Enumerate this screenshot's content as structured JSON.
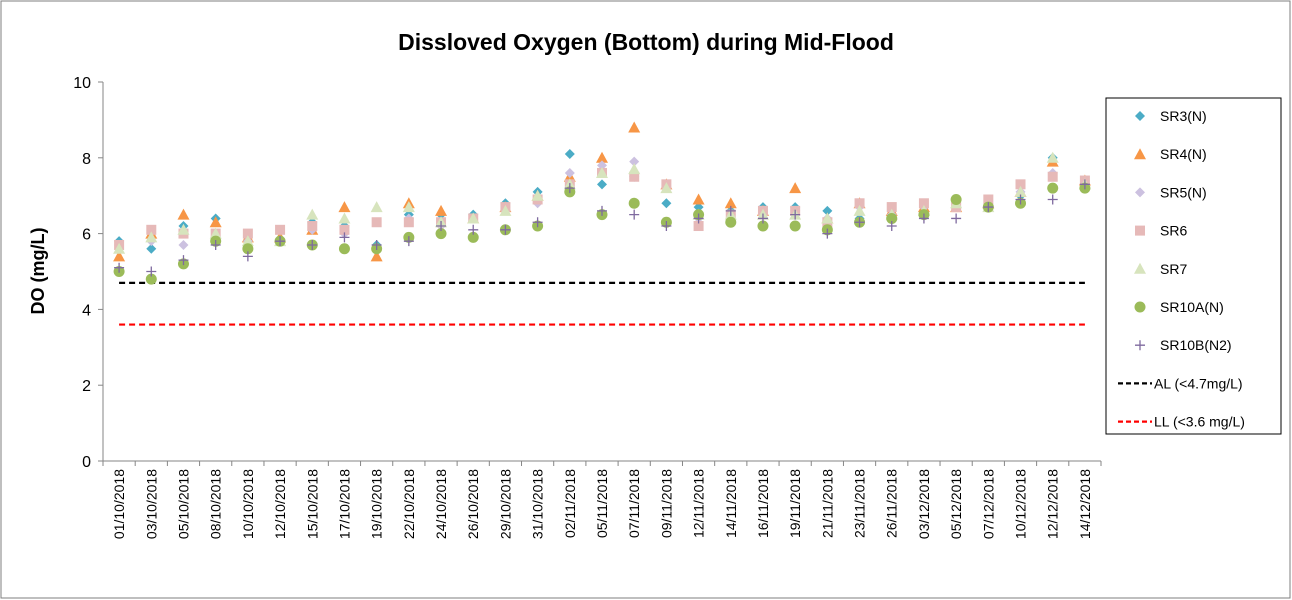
{
  "chart_data": {
    "type": "scatter",
    "title": "Dissloved Oxygen (Bottom) during Mid-Flood",
    "y_label": "DO (mg/L)",
    "categories": [
      "01/10/2018",
      "03/10/2018",
      "05/10/2018",
      "08/10/2018",
      "10/10/2018",
      "12/10/2018",
      "15/10/2018",
      "17/10/2018",
      "19/10/2018",
      "22/10/2018",
      "24/10/2018",
      "26/10/2018",
      "29/10/2018",
      "31/10/2018",
      "02/11/2018",
      "05/11/2018",
      "07/11/2018",
      "09/11/2018",
      "12/11/2018",
      "14/11/2018",
      "16/11/2018",
      "19/11/2018",
      "21/11/2018",
      "23/11/2018",
      "26/11/2018",
      "03/12/2018",
      "05/12/2018",
      "07/12/2018",
      "10/12/2018",
      "12/12/2018",
      "14/12/2018"
    ],
    "ylim": [
      0,
      10
    ],
    "yticks": [
      0,
      2,
      4,
      6,
      8,
      10
    ],
    "series": [
      {
        "name": "SR3(N)",
        "color": "#4bacc6",
        "marker": "diamond",
        "values": [
          5.8,
          5.6,
          6.2,
          6.4,
          5.7,
          5.8,
          6.3,
          6.2,
          5.7,
          6.5,
          6.5,
          6.5,
          6.8,
          7.1,
          8.1,
          7.3,
          7.5,
          6.8,
          6.7,
          6.6,
          6.7,
          6.7,
          6.6,
          6.4,
          6.5,
          6.5,
          6.8,
          6.7,
          7.0,
          8.0,
          7.3
        ]
      },
      {
        "name": "SR4(N)",
        "color": "#f79646",
        "marker": "triangle",
        "values": [
          5.4,
          6.0,
          6.5,
          6.3,
          5.9,
          5.9,
          6.1,
          6.7,
          5.4,
          6.8,
          6.6,
          6.4,
          6.7,
          7.0,
          7.5,
          8.0,
          8.8,
          7.3,
          6.9,
          6.8,
          6.6,
          7.2,
          6.4,
          6.8,
          6.6,
          6.7,
          6.7,
          6.8,
          7.1,
          7.9,
          7.4
        ]
      },
      {
        "name": "SR5(N)",
        "color": "#ccc1e0",
        "marker": "diamond",
        "values": [
          5.7,
          5.8,
          5.7,
          5.9,
          5.8,
          5.8,
          6.1,
          6.0,
          5.6,
          6.4,
          6.2,
          6.4,
          6.7,
          6.8,
          7.6,
          7.8,
          7.9,
          7.2,
          6.4,
          6.5,
          6.5,
          6.6,
          6.4,
          6.7,
          6.5,
          6.7,
          6.7,
          6.8,
          7.1,
          7.6,
          7.4
        ]
      },
      {
        "name": "SR6",
        "color": "#e6b9b8",
        "marker": "square",
        "values": [
          5.7,
          6.1,
          6.0,
          6.0,
          6.0,
          6.1,
          6.2,
          6.1,
          6.3,
          6.3,
          6.3,
          6.4,
          6.7,
          6.9,
          7.3,
          7.6,
          7.5,
          7.3,
          6.2,
          6.5,
          6.6,
          6.6,
          6.3,
          6.8,
          6.7,
          6.8,
          6.7,
          6.9,
          7.3,
          7.5,
          7.4
        ]
      },
      {
        "name": "SR7",
        "color": "#d7e4bd",
        "marker": "triangle",
        "values": [
          5.6,
          5.9,
          6.1,
          6.0,
          5.8,
          5.8,
          6.5,
          6.4,
          6.7,
          6.7,
          6.3,
          6.4,
          6.6,
          7.0,
          7.3,
          7.6,
          7.7,
          7.2,
          6.5,
          6.5,
          6.5,
          6.5,
          6.4,
          6.6,
          6.5,
          6.6,
          6.8,
          6.7,
          7.1,
          8.0,
          7.3
        ]
      },
      {
        "name": "SR10A(N)",
        "color": "#9bbb59",
        "marker": "circle",
        "values": [
          5.0,
          4.8,
          5.2,
          5.8,
          5.6,
          5.8,
          5.7,
          5.6,
          5.6,
          5.9,
          6.0,
          5.9,
          6.1,
          6.2,
          7.1,
          6.5,
          6.8,
          6.3,
          6.5,
          6.3,
          6.2,
          6.2,
          6.1,
          6.3,
          6.4,
          6.5,
          6.9,
          6.7,
          6.8,
          7.2,
          7.2
        ]
      },
      {
        "name": "SR10B(N2)",
        "color": "#7f6a9f",
        "marker": "plus",
        "values": [
          5.1,
          5.0,
          5.3,
          5.7,
          5.4,
          5.8,
          5.7,
          5.9,
          5.7,
          5.8,
          6.2,
          6.1,
          6.1,
          6.3,
          7.2,
          6.6,
          6.5,
          6.2,
          6.4,
          6.6,
          6.4,
          6.5,
          6.0,
          6.3,
          6.2,
          6.4,
          6.4,
          6.7,
          6.9,
          6.9,
          7.3
        ]
      }
    ],
    "reference_lines": [
      {
        "name": "AL (<4.7mg/L)",
        "value": 4.7,
        "color": "#000000"
      },
      {
        "name": "LL (<3.6 mg/L)",
        "value": 3.6,
        "color": "#ff0000"
      }
    ]
  }
}
